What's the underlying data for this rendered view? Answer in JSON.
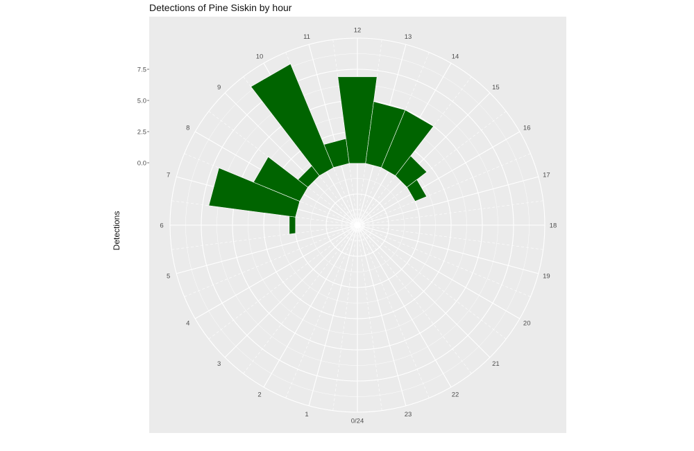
{
  "chart_data": {
    "type": "bar",
    "coord": "polar",
    "title": "Detections of Pine Siskin by hour",
    "xlabel": "",
    "ylabel": "Detections",
    "categories": [
      "0/24",
      "1",
      "2",
      "3",
      "4",
      "5",
      "6",
      "7",
      "8",
      "9",
      "10",
      "11",
      "12",
      "13",
      "14",
      "15",
      "16",
      "17",
      "18",
      "19",
      "20",
      "21",
      "22",
      "23"
    ],
    "values": [
      0,
      0,
      0,
      0,
      0,
      0,
      0.5,
      7,
      4,
      1,
      9,
      2,
      7,
      5,
      5,
      2,
      1,
      0,
      0,
      0,
      0,
      0,
      0,
      0
    ],
    "ytick_labels": [
      "0.0",
      "2.5",
      "5.0",
      "7.5"
    ],
    "ylim": [
      -5,
      10
    ],
    "grid": true,
    "bar_color": "#006400",
    "panel_color": "#ebebeb",
    "grid_color": "#ffffff"
  }
}
